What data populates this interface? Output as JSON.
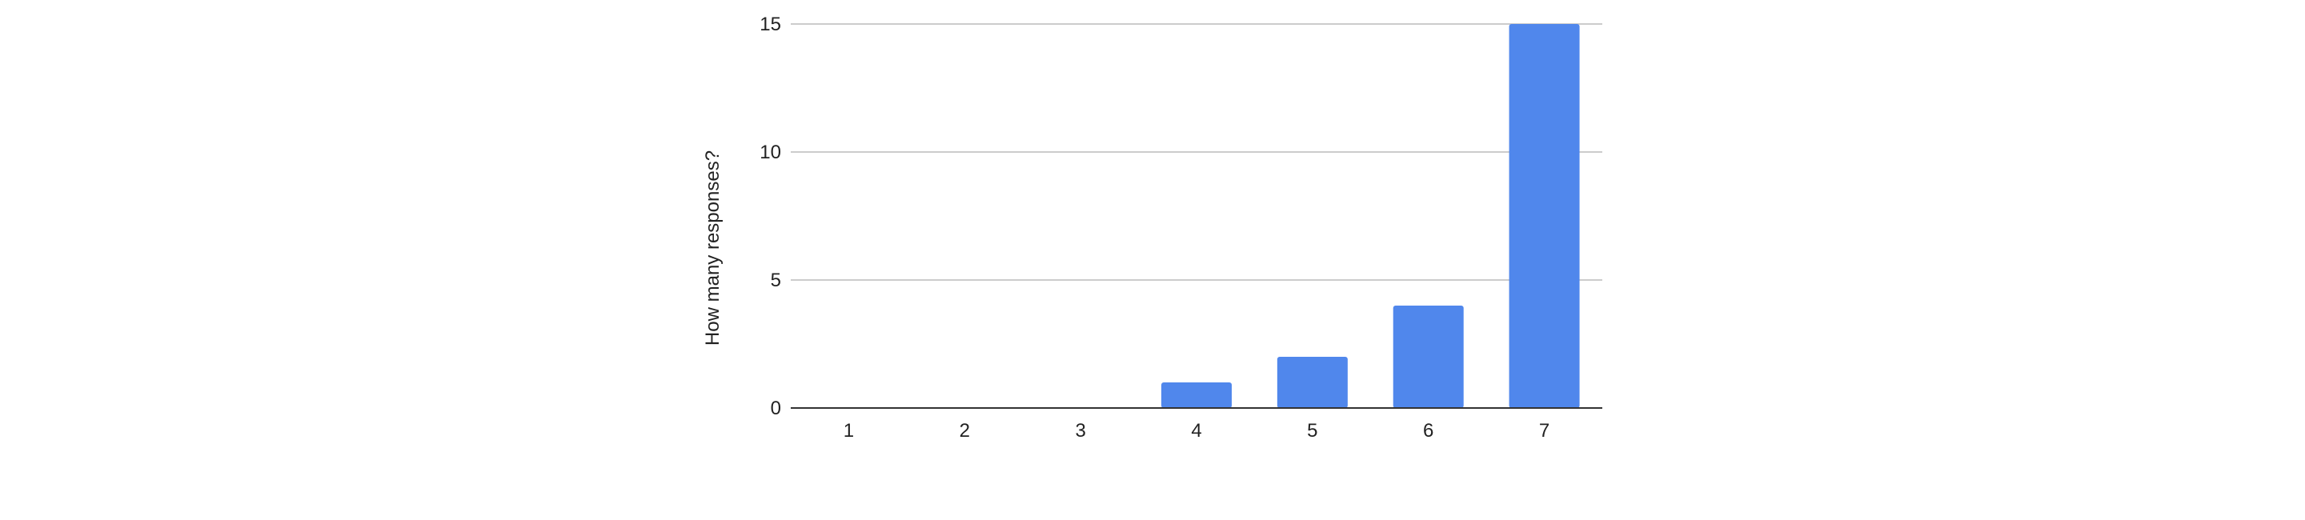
{
  "chart_data": {
    "type": "bar",
    "title": "",
    "xlabel": "",
    "ylabel": "How many responses?",
    "categories": [
      "1",
      "2",
      "3",
      "4",
      "5",
      "6",
      "7"
    ],
    "values": [
      0,
      0,
      0,
      1,
      2,
      4,
      15
    ],
    "ylim": [
      0,
      15
    ],
    "yticks": [
      0,
      5,
      10,
      15
    ],
    "grid": true,
    "legend": "none",
    "colors": {
      "bar": "#5087EC",
      "grid": "#CCCCCC",
      "axis": "#333333"
    }
  }
}
